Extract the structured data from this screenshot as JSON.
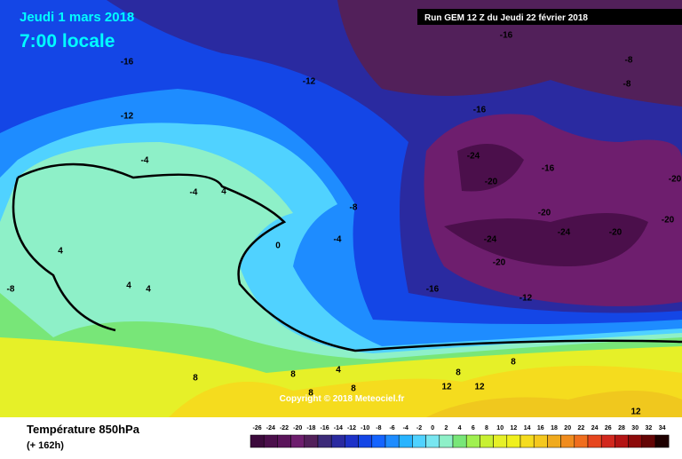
{
  "header": {
    "date": "Jeudi 1 mars 2018",
    "time": "7:00 locale",
    "run": "Run GEM 12 Z du Jeudi 22 février 2018"
  },
  "map": {
    "contour_labels": [
      -16,
      -16,
      -12,
      -8,
      -8,
      -12,
      -16,
      -4,
      -24,
      -16,
      -20,
      -20,
      -4,
      4,
      -8,
      -20,
      -20,
      -24,
      -24,
      -20,
      -4,
      0,
      4,
      -20,
      -8,
      4,
      4,
      -16,
      -12,
      8,
      4,
      8,
      8,
      8,
      12,
      12,
      8,
      8,
      12
    ],
    "copyright": "Copyright © 2018 Meteociel.fr"
  },
  "footer": {
    "title": "Température 850hPa",
    "lead": "(+ 162h)"
  },
  "colorbar": {
    "ticks": [
      -26,
      -24,
      -22,
      -20,
      -18,
      -16,
      -14,
      -12,
      -10,
      -8,
      -6,
      -4,
      -2,
      0,
      2,
      4,
      6,
      8,
      10,
      12,
      14,
      16,
      18,
      20,
      22,
      24,
      26,
      28,
      30,
      32,
      34
    ],
    "colors": [
      "#3c0a3c",
      "#4b0f4b",
      "#5a145a",
      "#6e1e6e",
      "#52205a",
      "#3c2a78",
      "#2a2aa0",
      "#1e32c8",
      "#1446e6",
      "#1464ff",
      "#1e8cff",
      "#28b4ff",
      "#50d2ff",
      "#78e6f0",
      "#8ef0c8",
      "#78e678",
      "#a0f050",
      "#c8f032",
      "#e6f028",
      "#f0f01e",
      "#f5dc1e",
      "#f5c81e",
      "#f0aa1e",
      "#f08c1e",
      "#f06e1e",
      "#e6461e",
      "#d2281e",
      "#b41414",
      "#8c0a0a",
      "#640505",
      "#1e0000"
    ]
  }
}
